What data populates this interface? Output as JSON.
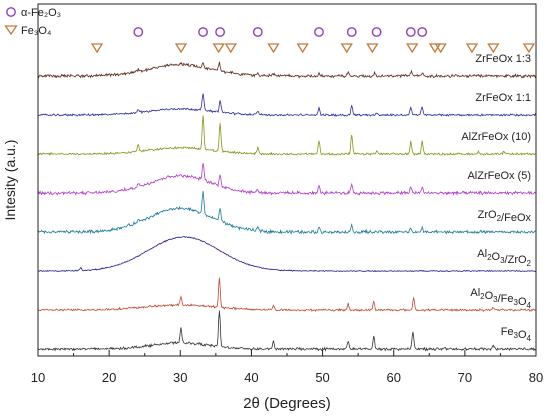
{
  "chart_data": {
    "type": "line",
    "xlabel": "2θ (Degrees)",
    "ylabel": "Intesity (a.u.)",
    "xlim": [
      10,
      80
    ],
    "x_ticks": [
      10,
      20,
      30,
      40,
      50,
      60,
      70,
      80
    ],
    "y_ticks": "none",
    "grid": false,
    "legend_position": "top-left",
    "legend": [
      {
        "label": "α-Fe₂O₃",
        "marker": "circle",
        "color": "#8e3fbf"
      },
      {
        "label": "Fe₃O₄",
        "marker": "triangle-down",
        "color": "#c07a3e"
      }
    ],
    "reference_markers": {
      "alpha_Fe2O3": [
        24.1,
        33.2,
        35.6,
        40.9,
        49.5,
        54.1,
        57.6,
        62.4,
        64.0
      ],
      "Fe3O4": [
        18.3,
        30.1,
        35.4,
        37.1,
        43.1,
        47.2,
        53.4,
        57.0,
        62.6,
        65.8,
        66.6,
        71.0,
        74.0,
        79.0
      ]
    },
    "peak_positions": [
      24.1,
      30.1,
      33.2,
      35.5,
      40.9,
      43.1,
      49.5,
      53.6,
      57.4,
      62.5,
      64.0,
      71.9,
      75.5
    ],
    "series": [
      {
        "name": "ZrFeOx 1:3",
        "label": "ZrFeOx 1:3",
        "color": "#5a2a1a",
        "offset": 8,
        "hump": {
          "center": 30,
          "height": 0.18,
          "width": 4.5
        },
        "peaks": [
          [
            24.1,
            0.03
          ],
          [
            30.1,
            0.04
          ],
          [
            33.2,
            0.08
          ],
          [
            35.5,
            0.14
          ],
          [
            40.9,
            0.03
          ],
          [
            43.1,
            0.04
          ],
          [
            49.5,
            0.04
          ],
          [
            53.6,
            0.07
          ],
          [
            57.4,
            0.06
          ],
          [
            62.5,
            0.08
          ],
          [
            64.0,
            0.05
          ]
        ],
        "noise": 0.03
      },
      {
        "name": "ZrFeOx 1:1",
        "label": "ZrFeOx 1:1",
        "color": "#2a2a9a",
        "offset": 7,
        "hump": {
          "center": 30,
          "height": 0.1,
          "width": 4.5
        },
        "peaks": [
          [
            24.1,
            0.05
          ],
          [
            33.2,
            0.28
          ],
          [
            35.6,
            0.2
          ],
          [
            40.9,
            0.06
          ],
          [
            49.5,
            0.12
          ],
          [
            54.1,
            0.16
          ],
          [
            57.6,
            0.04
          ],
          [
            62.4,
            0.13
          ],
          [
            64.0,
            0.14
          ]
        ],
        "noise": 0.02
      },
      {
        "name": "AlZrFeOx (10)",
        "label": "AlZrFeOx (10)",
        "color": "#7a9a1a",
        "offset": 6,
        "hump": {
          "center": 30,
          "height": 0.1,
          "width": 4.5
        },
        "peaks": [
          [
            24.1,
            0.12
          ],
          [
            33.2,
            0.55
          ],
          [
            35.6,
            0.45
          ],
          [
            40.9,
            0.1
          ],
          [
            49.5,
            0.22
          ],
          [
            54.1,
            0.3
          ],
          [
            57.6,
            0.05
          ],
          [
            62.4,
            0.2
          ],
          [
            64.0,
            0.22
          ],
          [
            71.9,
            0.04
          ],
          [
            75.5,
            0.04
          ]
        ],
        "noise": 0.02
      },
      {
        "name": "AlZrFeOx (5)",
        "label": "AlZrFeOx (5)",
        "color": "#b03ac8",
        "offset": 5,
        "hump": {
          "center": 30,
          "height": 0.28,
          "width": 4.2
        },
        "peaks": [
          [
            24.1,
            0.04
          ],
          [
            33.2,
            0.28
          ],
          [
            35.6,
            0.2
          ],
          [
            40.9,
            0.05
          ],
          [
            49.5,
            0.12
          ],
          [
            54.1,
            0.15
          ],
          [
            62.4,
            0.1
          ],
          [
            64.0,
            0.1
          ]
        ],
        "noise": 0.03
      },
      {
        "name": "ZrO2/FeOx",
        "label": "ZrO2/FeOx",
        "color": "#1a7a9a",
        "offset": 4,
        "hump": {
          "center": 30,
          "height": 0.38,
          "width": 4.5
        },
        "peaks": [
          [
            24.1,
            0.03
          ],
          [
            33.2,
            0.35
          ],
          [
            35.6,
            0.22
          ],
          [
            40.9,
            0.05
          ],
          [
            49.5,
            0.08
          ],
          [
            54.1,
            0.1
          ],
          [
            62.4,
            0.07
          ],
          [
            64.0,
            0.06
          ]
        ],
        "noise": 0.03
      },
      {
        "name": "Al2O3/ZrO2",
        "label": "Al2O3/ZrO2",
        "color": "#1a1a8a",
        "offset": 3,
        "hump": {
          "center": 30.5,
          "height": 0.55,
          "width": 5
        },
        "peaks": [
          [
            16,
            0.05
          ]
        ],
        "noise": 0.01
      },
      {
        "name": "Al2O3/Fe3O4",
        "label": "Al2O3/Fe3O4",
        "color": "#c04a30",
        "offset": 2,
        "hump": {
          "center": 30,
          "height": 0.08,
          "width": 5
        },
        "peaks": [
          [
            30.1,
            0.14
          ],
          [
            35.5,
            0.48
          ],
          [
            43.1,
            0.08
          ],
          [
            53.6,
            0.1
          ],
          [
            57.2,
            0.14
          ],
          [
            62.8,
            0.2
          ],
          [
            74.0,
            0.05
          ]
        ],
        "noise": 0.02
      },
      {
        "name": "Fe3O4",
        "label": "Fe3O4",
        "color": "#333333",
        "offset": 1,
        "hump": {
          "center": 30,
          "height": 0.1,
          "width": 4
        },
        "peaks": [
          [
            30.1,
            0.25
          ],
          [
            35.5,
            0.6
          ],
          [
            43.1,
            0.12
          ],
          [
            53.6,
            0.12
          ],
          [
            57.2,
            0.2
          ],
          [
            62.7,
            0.28
          ],
          [
            74.0,
            0.05
          ]
        ],
        "noise": 0.025
      }
    ]
  }
}
